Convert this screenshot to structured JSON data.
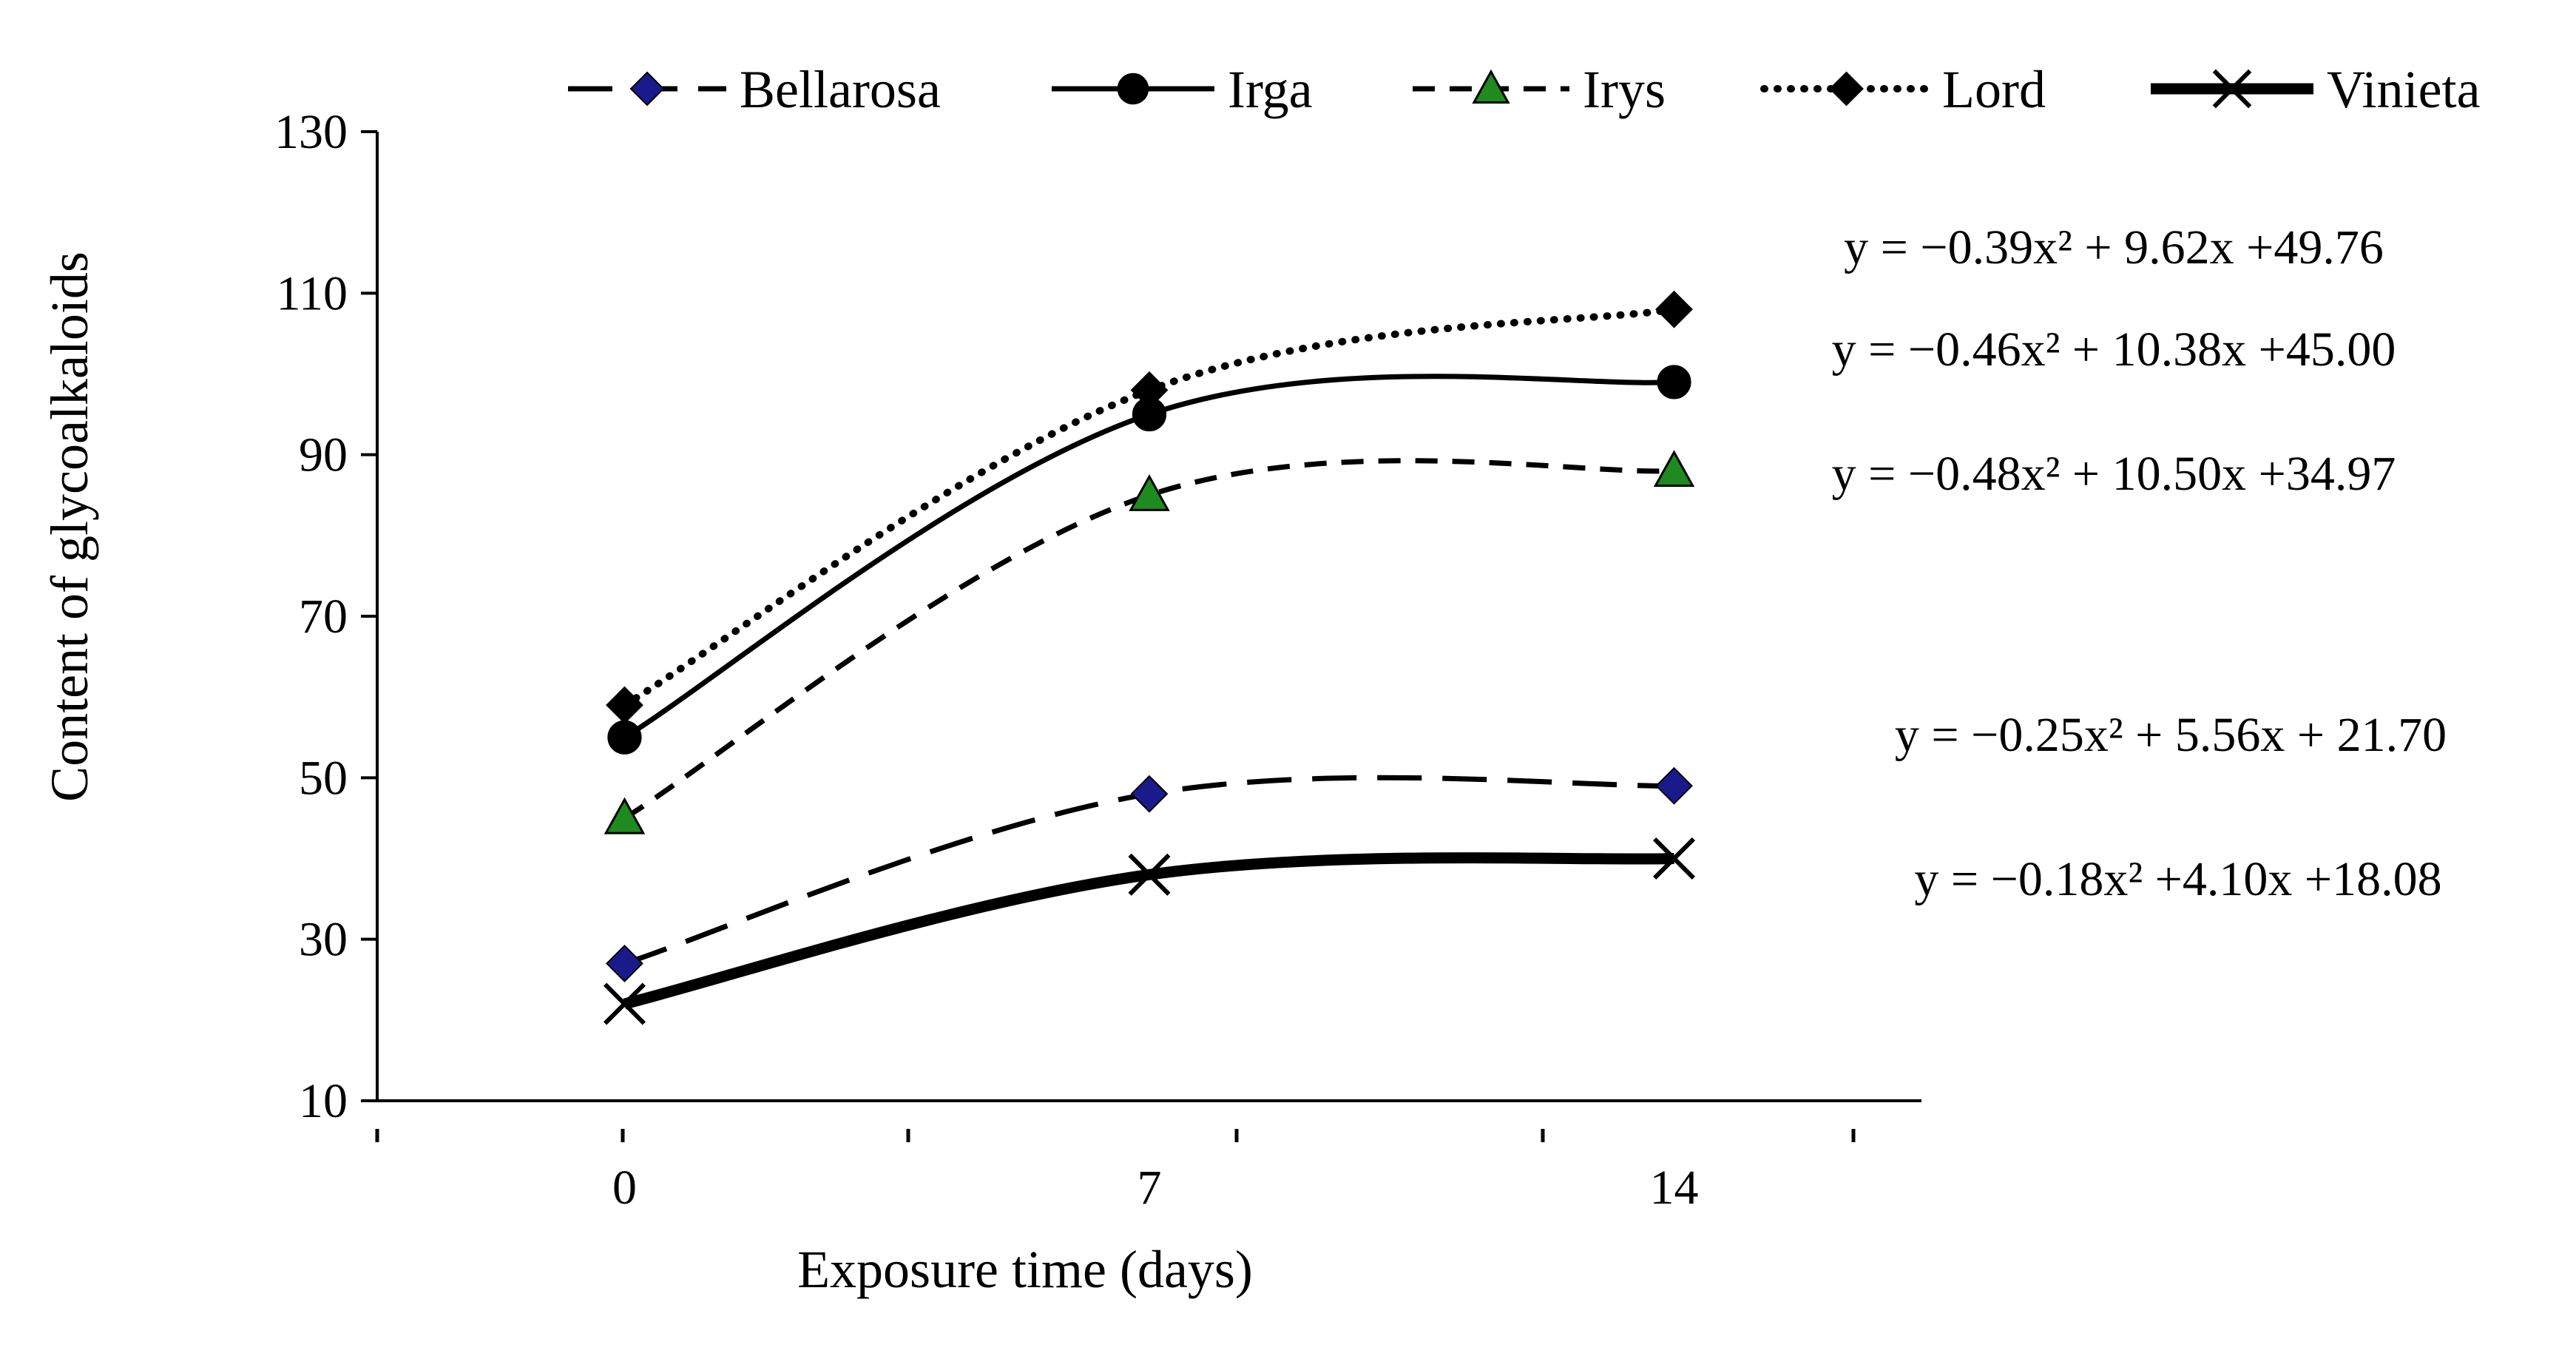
{
  "chart_data": {
    "type": "line",
    "title": "",
    "xlabel": "Exposure time (days)",
    "ylabel": "Content of glycoalkaloids",
    "x": [
      0,
      7,
      14
    ],
    "x_tick_labels": [
      "0",
      "7",
      "14"
    ],
    "xlim": [
      -3.3,
      17.3
    ],
    "ylim": [
      10,
      130
    ],
    "y_ticks": [
      10,
      30,
      50,
      70,
      90,
      110,
      130
    ],
    "y_tick_labels": [
      "10",
      "30",
      "50",
      "70",
      "90",
      "110",
      "130"
    ],
    "grid": false,
    "legend_position": "top",
    "series": [
      {
        "name": "Bellarosa",
        "values": [
          27,
          48,
          49
        ],
        "equation": "y = −0.25x² + 5.56x + 21.70",
        "a": -0.25,
        "b": 5.56,
        "c": 21.7,
        "color": "#000000",
        "marker_color": "#1a1a8c",
        "marker": "diamond",
        "dash": "long-dash"
      },
      {
        "name": "Irga",
        "values": [
          55,
          95,
          99
        ],
        "equation": "y = −0.46x² + 10.38x +45.00",
        "a": -0.46,
        "b": 10.38,
        "c": 45.0,
        "color": "#000000",
        "marker_color": "#000000",
        "marker": "circle",
        "dash": "solid"
      },
      {
        "name": "Irys",
        "values": [
          45,
          85,
          88
        ],
        "equation": "y = −0.48x² + 10.50x +34.97",
        "a": -0.48,
        "b": 10.5,
        "c": 34.97,
        "color": "#000000",
        "marker_color": "#1f8a1f",
        "marker": "triangle",
        "dash": "short-dash"
      },
      {
        "name": "Lord",
        "values": [
          59,
          98,
          108
        ],
        "equation": "y = −0.39x² + 9.62x +49.76",
        "a": -0.39,
        "b": 9.62,
        "c": 49.76,
        "color": "#000000",
        "marker_color": "#000000",
        "marker": "diamond",
        "dash": "dotted"
      },
      {
        "name": "Vinieta",
        "values": [
          22,
          38,
          40
        ],
        "equation": "y = −0.18x² +4.10x +18.08",
        "a": -0.18,
        "b": 4.1,
        "c": 18.08,
        "color": "#000000",
        "marker_color": "#000000",
        "marker": "x",
        "dash": "thick-solid"
      }
    ]
  }
}
